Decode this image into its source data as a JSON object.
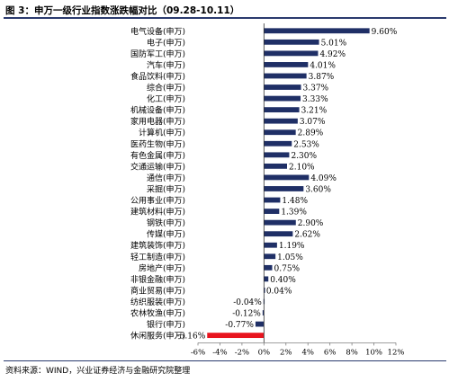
{
  "title": "图 3：申万一级行业指数涨跌幅对比（09.28-10.11）",
  "source": "资料来源：WIND，兴业证券经济与金融研究院整理",
  "colors": {
    "bar": "#1f2f66",
    "highlight": "#e8141e",
    "axis": "#808080"
  },
  "chart_data": {
    "type": "bar",
    "orientation": "horizontal",
    "categories": [
      "电气设备(申万)",
      "电子(申万)",
      "国防军工(申万)",
      "汽车(申万)",
      "食品饮料(申万)",
      "综合(申万)",
      "化工(申万)",
      "机械设备(申万)",
      "家用电器(申万)",
      "计算机(申万)",
      "医药生物(申万)",
      "有色金属(申万)",
      "交通运输(申万)",
      "通信(申万)",
      "采掘(申万)",
      "公用事业(申万)",
      "建筑材料(申万)",
      "钢铁(申万)",
      "传媒(申万)",
      "建筑装饰(申万)",
      "轻工制造(申万)",
      "房地产(申万)",
      "非银金融(申万)",
      "商业贸易(申万)",
      "纺织服装(申万)",
      "农林牧渔(申万)",
      "银行(申万)",
      "休闲服务(申万)"
    ],
    "values": [
      9.6,
      5.01,
      4.92,
      4.01,
      3.87,
      3.37,
      3.33,
      3.21,
      3.07,
      2.89,
      2.53,
      2.3,
      2.1,
      4.09,
      3.6,
      1.48,
      1.39,
      2.9,
      2.62,
      1.19,
      1.05,
      0.75,
      0.4,
      0.04,
      -0.04,
      -0.12,
      -0.77,
      -5.16
    ],
    "value_labels": [
      "9.60%",
      "5.01%",
      "4.92%",
      "4.01%",
      "3.87%",
      "3.37%",
      "3.33%",
      "3.21%",
      "3.07%",
      "2.89%",
      "2.53%",
      "2.30%",
      "2.10%",
      "4.09%",
      "3.60%",
      "1.48%",
      "1.39%",
      "2.90%",
      "2.62%",
      "1.19%",
      "1.05%",
      "0.75%",
      "0.40%",
      "0.04%",
      "-0.04%",
      "-0.12%",
      "-0.77%",
      "-5.16%"
    ],
    "highlight_category": "休闲服务(申万)",
    "xlim": [
      -6,
      12
    ],
    "xticks": [
      -6,
      -4,
      -2,
      0,
      2,
      4,
      6,
      8,
      10,
      12
    ],
    "xtick_labels": [
      "-6%",
      "-4%",
      "-2%",
      "0%",
      "2%",
      "4%",
      "6%",
      "8%",
      "10%",
      "12%"
    ],
    "grid": false,
    "legend": "none"
  }
}
